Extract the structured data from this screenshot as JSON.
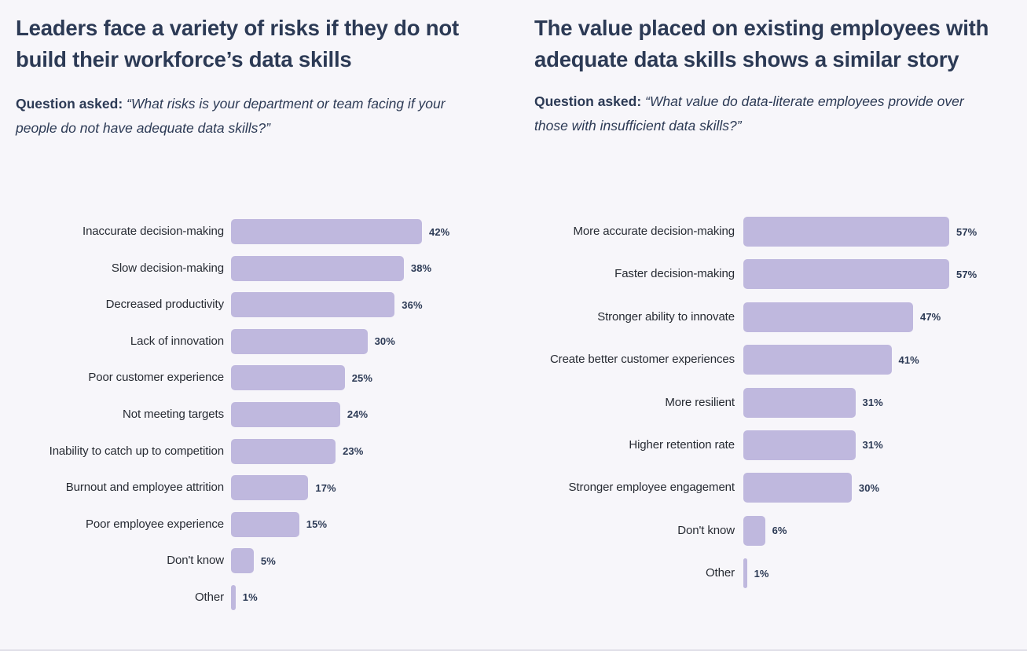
{
  "colors": {
    "background": "#f7f6fa",
    "bar": "#bfb8de",
    "navy_text": "#2c3a55",
    "label_text": "#272b33",
    "divider": "#e0dfe8"
  },
  "chart_data": [
    {
      "type": "bar",
      "orientation": "horizontal",
      "title": "Leaders face a variety of risks if they do not build their workforce’s data skills",
      "subtitle_label": "Question asked:",
      "subtitle_quote": "“What risks is your department or team facing if your people do not have adequate data skills?”",
      "categories": [
        "Inaccurate decision-making",
        "Slow decision-making",
        "Decreased productivity",
        "Lack of innovation",
        "Poor customer experience",
        "Not meeting targets",
        "Inability to catch up to competition",
        "Burnout and employee attrition",
        "Poor employee experience",
        "Don't know",
        "Other"
      ],
      "values": [
        42,
        38,
        36,
        30,
        25,
        24,
        23,
        17,
        15,
        5,
        1
      ],
      "value_suffix": "%",
      "data_labels": true,
      "xlim": [
        0,
        45
      ],
      "grid": false,
      "legend": false,
      "xlabel": "",
      "ylabel": ""
    },
    {
      "type": "bar",
      "orientation": "horizontal",
      "title": "The value placed on existing employees with adequate data skills shows a similar story",
      "subtitle_label": "Question asked:",
      "subtitle_quote": "“What value do data-literate employees provide over those with insufficient data skills?”",
      "categories": [
        "More accurate decision-making",
        "Faster decision-making",
        "Stronger ability to innovate",
        "Create better customer experiences",
        "More resilient",
        "Higher retention rate",
        "Stronger employee engagement",
        "Don't know",
        "Other"
      ],
      "values": [
        57,
        57,
        47,
        41,
        31,
        31,
        30,
        6,
        1
      ],
      "value_suffix": "%",
      "data_labels": true,
      "xlim": [
        0,
        60
      ],
      "grid": false,
      "legend": false,
      "xlabel": "",
      "ylabel": ""
    }
  ]
}
